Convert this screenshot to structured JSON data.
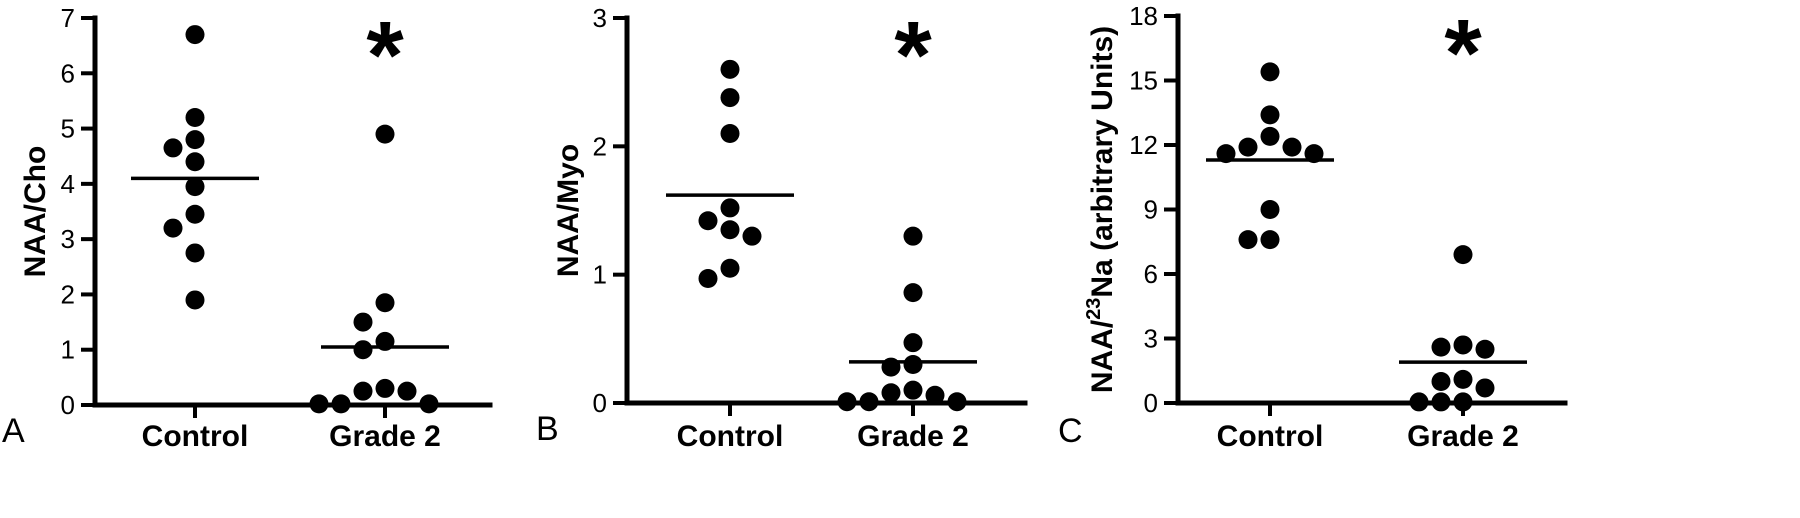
{
  "chart_data": [
    {
      "type": "scatter",
      "panel_label": "A",
      "ylabel": "NAA/Cho",
      "categories": [
        "Control",
        "Grade 2"
      ],
      "ylim": [
        0,
        7
      ],
      "yticks": [
        "0",
        "1",
        "2",
        "3",
        "4",
        "5",
        "6",
        "7"
      ],
      "series": [
        {
          "category": "Control",
          "mean": 4.1,
          "values": [
            6.7,
            5.2,
            4.8,
            4.65,
            4.4,
            3.95,
            3.45,
            3.2,
            2.75,
            1.9
          ]
        },
        {
          "category": "Grade 2",
          "mean": 1.05,
          "values": [
            4.9,
            1.85,
            1.5,
            1.15,
            1.0,
            0.3,
            0.25,
            0.25,
            0.02,
            0.02,
            0.02
          ]
        }
      ],
      "significance": {
        "category": "Grade 2",
        "symbol": "*"
      }
    },
    {
      "type": "scatter",
      "panel_label": "B",
      "ylabel": "NAA/Myo",
      "categories": [
        "Control",
        "Grade 2"
      ],
      "ylim": [
        0,
        3
      ],
      "yticks": [
        "0",
        "1",
        "2",
        "3"
      ],
      "series": [
        {
          "category": "Control",
          "mean": 1.62,
          "values": [
            2.6,
            2.38,
            2.1,
            1.52,
            1.42,
            1.35,
            1.3,
            1.05,
            0.97
          ]
        },
        {
          "category": "Grade 2",
          "mean": 0.32,
          "values": [
            1.3,
            0.86,
            0.47,
            0.3,
            0.28,
            0.1,
            0.08,
            0.06,
            0.01,
            0.01,
            0.01
          ]
        }
      ],
      "significance": {
        "category": "Grade 2",
        "symbol": "*"
      }
    },
    {
      "type": "scatter",
      "panel_label": "C",
      "ylabel_prefix": "NAA/",
      "ylabel_sup": "23",
      "ylabel_suffix": "Na (arbitrary Units)",
      "categories": [
        "Control",
        "Grade 2"
      ],
      "ylim": [
        0,
        18
      ],
      "yticks": [
        "0",
        "3",
        "6",
        "9",
        "12",
        "15",
        "18"
      ],
      "series": [
        {
          "category": "Control",
          "mean": 11.3,
          "values": [
            15.4,
            13.4,
            12.4,
            11.9,
            11.9,
            11.6,
            11.6,
            9.0,
            7.6,
            7.6
          ]
        },
        {
          "category": "Grade 2",
          "mean": 1.9,
          "values": [
            6.9,
            2.7,
            2.6,
            2.5,
            1.1,
            1.0,
            0.7,
            0.05,
            0.05,
            0.05
          ]
        }
      ],
      "significance": {
        "category": "Grade 2",
        "symbol": "*"
      }
    }
  ]
}
